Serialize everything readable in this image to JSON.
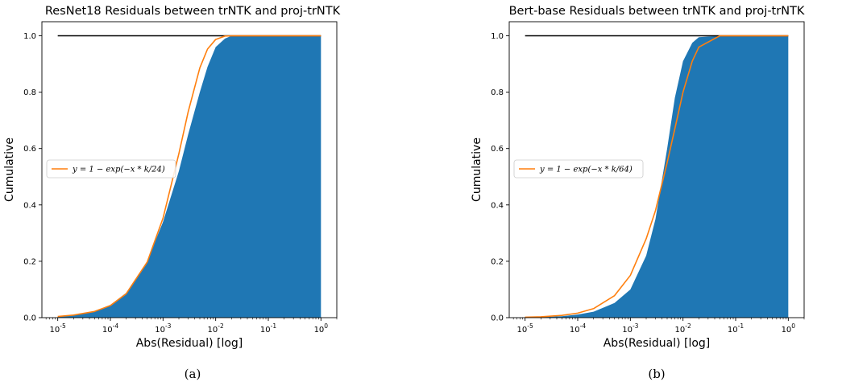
{
  "chart_data": [
    {
      "type": "area",
      "title": "ResNet18 Residuals between trNTK and proj-trNTK",
      "xlabel": "Abs(Residual) [log]",
      "ylabel": "Cumulative",
      "caption": "(a)",
      "x_scale": "log",
      "xlim": [
        5e-06,
        2
      ],
      "ylim": [
        0,
        1.05
      ],
      "x_ticks": [
        "10^-5",
        "10^-4",
        "10^-3",
        "10^-2",
        "10^-1",
        "10^0"
      ],
      "y_ticks": [
        "0.0",
        "0.2",
        "0.4",
        "0.6",
        "0.8",
        "1.0"
      ],
      "legend_position": "center-left",
      "colors": {
        "histogram": "#1f77b4",
        "fit": "#ff7f0e",
        "reference": "#000000"
      },
      "series": [
        {
          "name": "histogram",
          "kind": "cumulative-histogram",
          "x": [
            1e-05,
            2e-05,
            5e-05,
            0.0001,
            0.0002,
            0.0005,
            0.001,
            0.002,
            0.003,
            0.005,
            0.007,
            0.01,
            0.015,
            0.02,
            0.05,
            0.1,
            1
          ],
          "y": [
            0.003,
            0.01,
            0.021,
            0.045,
            0.088,
            0.2,
            0.34,
            0.52,
            0.65,
            0.8,
            0.89,
            0.96,
            0.99,
            1.0,
            1.0,
            1.0,
            1.0
          ]
        },
        {
          "name": "fit",
          "kind": "line",
          "legend_label": "y = 1 − exp(−x * k/24)",
          "x": [
            1e-05,
            2e-05,
            5e-05,
            0.0001,
            0.0002,
            0.0005,
            0.001,
            0.002,
            0.003,
            0.005,
            0.007,
            0.01,
            0.015,
            0.02,
            0.05,
            0.1,
            1
          ],
          "y": [
            0.004,
            0.009,
            0.022,
            0.043,
            0.085,
            0.197,
            0.353,
            0.582,
            0.73,
            0.886,
            0.953,
            0.987,
            0.999,
            1.0,
            1.0,
            1.0,
            1.0
          ]
        },
        {
          "name": "reference",
          "kind": "hline",
          "y": 1.0
        }
      ]
    },
    {
      "type": "area",
      "title": "Bert-base Residuals between trNTK and proj-trNTK",
      "xlabel": "Abs(Residual) [log]",
      "ylabel": "Cumulative",
      "caption": "(b)",
      "x_scale": "log",
      "xlim": [
        5e-06,
        2
      ],
      "ylim": [
        0,
        1.05
      ],
      "x_ticks": [
        "10^-5",
        "10^-4",
        "10^-3",
        "10^-2",
        "10^-1",
        "10^0"
      ],
      "y_ticks": [
        "0.0",
        "0.2",
        "0.4",
        "0.6",
        "0.8",
        "1.0"
      ],
      "legend_position": "center-left",
      "colors": {
        "histogram": "#1f77b4",
        "fit": "#ff7f0e",
        "reference": "#000000"
      },
      "series": [
        {
          "name": "histogram",
          "kind": "cumulative-histogram",
          "x": [
            1e-05,
            2e-05,
            5e-05,
            0.0001,
            0.0002,
            0.0005,
            0.001,
            0.002,
            0.003,
            0.005,
            0.007,
            0.01,
            0.015,
            0.02,
            0.05,
            0.1,
            1
          ],
          "y": [
            0.0,
            0.002,
            0.005,
            0.011,
            0.021,
            0.052,
            0.1,
            0.22,
            0.35,
            0.6,
            0.78,
            0.91,
            0.975,
            0.995,
            1.0,
            1.0,
            1.0
          ]
        },
        {
          "name": "fit",
          "kind": "line",
          "legend_label": "y = 1 − exp(−x * k/64)",
          "x": [
            1e-05,
            2e-05,
            5e-05,
            0.0001,
            0.0002,
            0.0005,
            0.001,
            0.002,
            0.003,
            0.005,
            0.007,
            0.01,
            0.015,
            0.02,
            0.05,
            0.1,
            1
          ],
          "y": [
            0.0015,
            0.003,
            0.008,
            0.016,
            0.032,
            0.078,
            0.15,
            0.28,
            0.38,
            0.55,
            0.67,
            0.8,
            0.91,
            0.96,
            1.0,
            1.0,
            1.0
          ]
        },
        {
          "name": "reference",
          "kind": "hline",
          "y": 1.0
        }
      ]
    }
  ]
}
